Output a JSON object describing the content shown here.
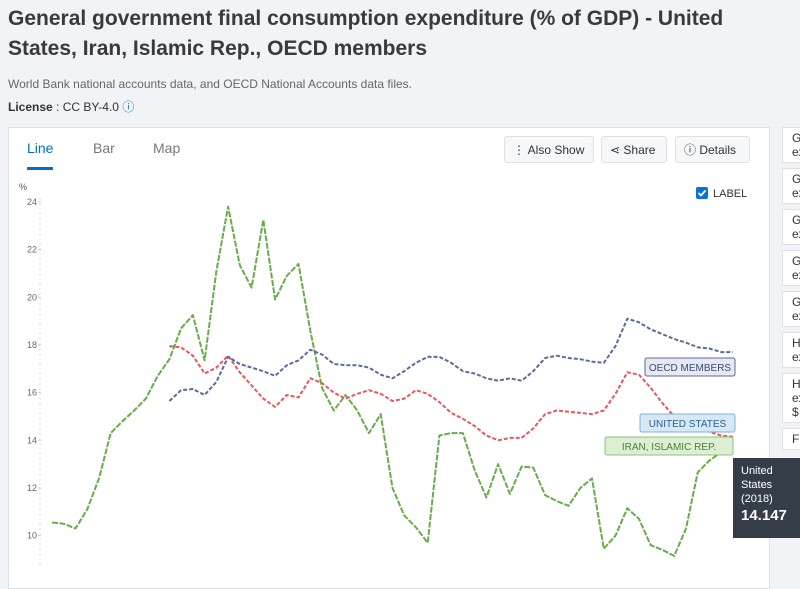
{
  "header": {
    "title": "General government final consumption expenditure (% of GDP) - United States, Iran, Islamic Rep., OECD members",
    "source": "World Bank national accounts data, and OECD National Accounts data files.",
    "license_label": "License",
    "license_value": ": CC BY-4.0"
  },
  "tabs": [
    "Line",
    "Bar",
    "Map"
  ],
  "buttons": [
    "Also Show",
    "Share",
    "Details"
  ],
  "label_toggle": "LABEL",
  "sidebar": [
    [
      "G",
      "ex"
    ],
    [
      "G",
      "ex"
    ],
    [
      "G",
      "ex"
    ],
    [
      "G",
      "ex"
    ],
    [
      "G",
      "ex"
    ],
    [
      "H",
      "ex"
    ],
    [
      "H",
      "ex",
      "$"
    ],
    [
      "Fi"
    ]
  ],
  "chart_data": {
    "type": "line",
    "y_unit": "%",
    "categories": [
      null,
      null,
      null,
      null,
      null,
      null,
      null,
      null,
      null,
      null,
      null,
      null,
      null,
      null,
      null,
      null,
      null,
      null,
      null,
      null,
      null,
      null,
      null,
      null,
      null,
      null,
      null,
      null,
      null,
      null,
      null,
      null,
      null,
      null,
      null,
      null,
      null,
      null,
      null,
      null,
      null,
      null,
      null,
      null,
      null,
      null,
      null,
      null,
      null,
      null,
      null,
      null,
      null,
      null,
      null,
      null,
      null,
      null,
      null
    ],
    "ylim": [
      8.6,
      24.5
    ],
    "yticks": [
      10,
      12,
      14,
      16,
      18,
      20,
      22,
      24
    ],
    "series": [
      {
        "name": "IRAN, ISLAMIC REP.",
        "color": "#6aab4c",
        "values": [
          10.55,
          10.5,
          10.3,
          11.1,
          12.4,
          14.3,
          14.8,
          15.25,
          15.75,
          16.7,
          17.4,
          18.7,
          19.25,
          17.35,
          21.1,
          23.8,
          21.35,
          20.4,
          23.25,
          19.9,
          20.9,
          21.4,
          18.6,
          16.2,
          15.25,
          15.9,
          15.25,
          14.3,
          15.1,
          12.0,
          10.85,
          10.35,
          9.7,
          14.2,
          14.3,
          14.3,
          12.75,
          11.6,
          13.0,
          11.75,
          12.9,
          12.85,
          11.7,
          11.45,
          11.25,
          12.0,
          12.4,
          9.45,
          10.0,
          11.15,
          10.7,
          9.6,
          9.4,
          9.15,
          10.3,
          12.65,
          13.15,
          13.5,
          null
        ]
      },
      {
        "name": "UNITED STATES",
        "color": "#e8575f",
        "values": [
          null,
          null,
          null,
          null,
          null,
          null,
          null,
          null,
          null,
          null,
          17.95,
          17.9,
          17.55,
          16.8,
          17.05,
          17.55,
          16.85,
          16.3,
          15.75,
          15.4,
          15.9,
          15.8,
          16.6,
          16.4,
          16.0,
          15.75,
          15.95,
          16.1,
          15.95,
          15.65,
          15.75,
          16.1,
          15.95,
          15.6,
          15.15,
          14.9,
          14.6,
          14.2,
          14.0,
          14.1,
          14.1,
          14.5,
          15.1,
          15.25,
          15.2,
          15.15,
          15.1,
          15.25,
          15.95,
          16.85,
          16.75,
          16.2,
          15.55,
          15.0,
          14.7,
          14.5,
          14.35,
          14.2,
          14.147
        ]
      },
      {
        "name": "OECD MEMBERS",
        "color": "#5a6a9b",
        "values": [
          null,
          null,
          null,
          null,
          null,
          null,
          null,
          null,
          null,
          null,
          15.65,
          16.1,
          16.15,
          15.9,
          16.45,
          17.5,
          17.2,
          17.05,
          16.9,
          16.7,
          17.15,
          17.35,
          17.8,
          17.6,
          17.2,
          17.15,
          17.15,
          17.05,
          16.75,
          16.6,
          16.9,
          17.25,
          17.5,
          17.5,
          17.25,
          16.9,
          16.8,
          16.6,
          16.5,
          16.6,
          16.5,
          16.9,
          17.45,
          17.55,
          17.45,
          17.4,
          17.3,
          17.25,
          17.95,
          19.1,
          18.95,
          18.65,
          18.45,
          18.25,
          18.1,
          17.9,
          17.85,
          17.7,
          17.7
        ]
      }
    ],
    "tooltip": {
      "title": "United States",
      "period": "(2018)"
    }
  }
}
